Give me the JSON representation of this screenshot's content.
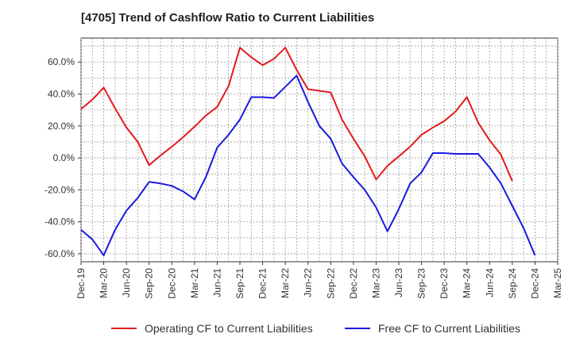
{
  "chart_data": {
    "type": "line",
    "title": "[4705]  Trend of Cashflow Ratio to Current Liabilities",
    "xlabel": "",
    "ylabel": "",
    "ylim": [
      -65,
      75
    ],
    "y_ticks": [
      60,
      40,
      20,
      0,
      -20,
      -40,
      -60
    ],
    "y_tick_labels": [
      "60.0%",
      "40.0%",
      "20.0%",
      "0.0%",
      "-20.0%",
      "-40.0%",
      "-60.0%"
    ],
    "x_tick_labels": [
      "Dec-19",
      "Mar-20",
      "Jun-20",
      "Sep-20",
      "Dec-20",
      "Mar-21",
      "Jun-21",
      "Sep-21",
      "Dec-21",
      "Mar-22",
      "Jun-22",
      "Sep-22",
      "Dec-22",
      "Mar-23",
      "Jun-23",
      "Sep-23",
      "Dec-23",
      "Mar-24",
      "Jun-24",
      "Sep-24",
      "Dec-24",
      "Mar-25"
    ],
    "grid": true,
    "legend_position": "bottom",
    "series": [
      {
        "name": "Operating CF to Current Liabilities",
        "color": "#e31a1c",
        "values": [
          30.5,
          36.5,
          44,
          31,
          19,
          10,
          -4.5,
          1.5,
          7,
          13,
          19.5,
          26.5,
          32,
          45,
          69,
          63,
          58,
          62,
          69,
          55,
          43,
          42,
          41,
          24,
          12,
          1,
          -13.5,
          -5,
          1,
          7,
          14.5,
          19,
          23,
          29,
          38,
          22,
          11,
          2,
          -14.5
        ]
      },
      {
        "name": "Free CF to Current Liabilities",
        "color": "#1a1adf",
        "values": [
          -45,
          -51,
          -61,
          -45,
          -33,
          -25,
          -15,
          -16,
          -17.5,
          -21,
          -26,
          -12,
          6.5,
          14.5,
          24,
          38,
          38,
          37.5,
          44.5,
          51.5,
          35,
          20,
          12,
          -3.5,
          -12,
          -20,
          -31,
          -46,
          -32,
          -16,
          -9,
          3,
          3,
          2.5,
          2.5,
          2.5,
          -6,
          -16,
          -30,
          -44,
          -61
        ]
      }
    ]
  }
}
